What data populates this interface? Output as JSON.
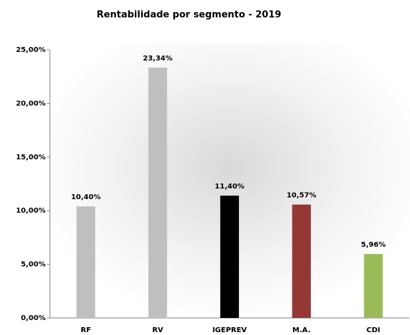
{
  "chart_data": {
    "type": "bar",
    "title": "Rentabilidade por segmento - 2019",
    "categories": [
      "RF",
      "RV",
      "IGEPREV",
      "M.A.",
      "CDI"
    ],
    "values": [
      10.4,
      23.34,
      11.4,
      10.57,
      5.96
    ],
    "value_labels": [
      "10,40%",
      "23,34%",
      "11,40%",
      "10,57%",
      "5,96%"
    ],
    "colors": [
      "#bfbfbf",
      "#bfbfbf",
      "#000000",
      "#953735",
      "#9bbb59"
    ],
    "ylim": [
      0,
      25
    ],
    "yticks": [
      {
        "value": 0,
        "label": "0,00%"
      },
      {
        "value": 5,
        "label": "5,00%"
      },
      {
        "value": 10,
        "label": "10,00%"
      },
      {
        "value": 15,
        "label": "15,00%"
      },
      {
        "value": 20,
        "label": "20,00%"
      },
      {
        "value": 25,
        "label": "25,00%"
      }
    ],
    "grid": false
  }
}
